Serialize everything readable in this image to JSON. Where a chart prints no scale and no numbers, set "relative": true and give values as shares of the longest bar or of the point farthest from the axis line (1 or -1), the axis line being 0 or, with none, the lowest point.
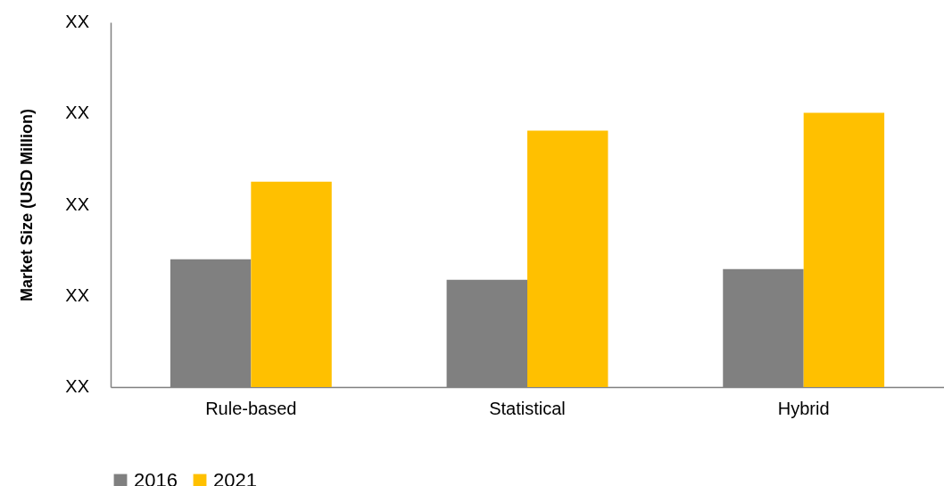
{
  "chart_data": {
    "type": "bar",
    "ylabel": "Market Size (USD Million)",
    "relative": true,
    "categories": [
      "Rule-based",
      "Statistical",
      "Hybrid"
    ],
    "series": [
      {
        "name": "2016",
        "color": "#808080",
        "values": [
          0.466,
          0.391,
          0.43
        ]
      },
      {
        "name": "2021",
        "color": "#ffc000",
        "values": [
          0.749,
          0.935,
          1
        ]
      }
    ],
    "annotations": [
      "XX",
      "XX",
      "XX",
      "XX",
      "XX"
    ],
    "legend": "bottom",
    "grid": false
  }
}
